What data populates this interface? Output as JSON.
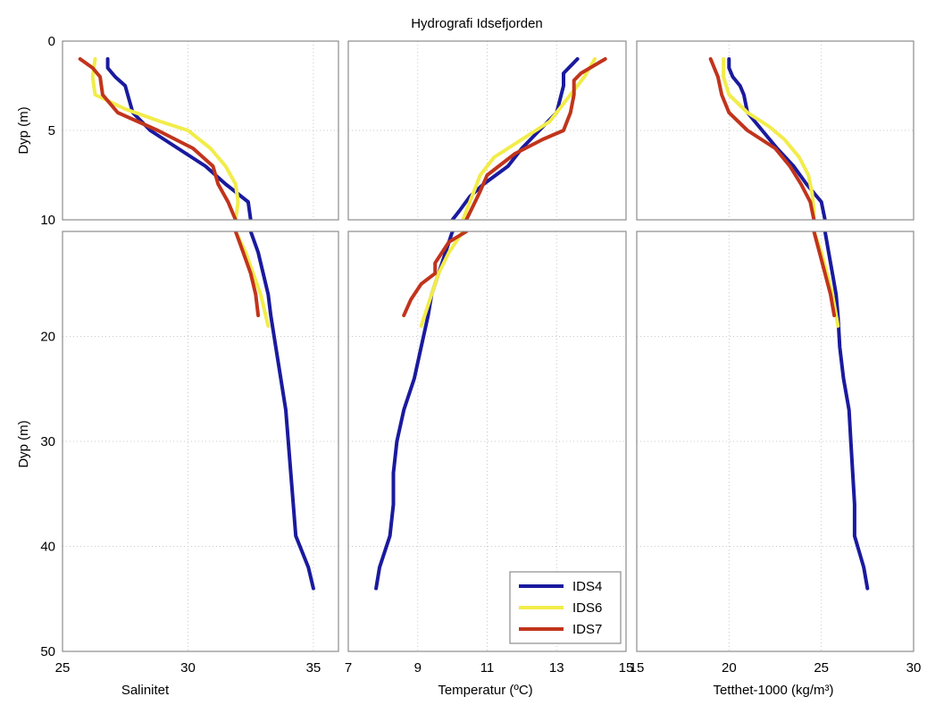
{
  "colors": {
    "IDS4": "#1a1a9e",
    "IDS6": "#f2ec4a",
    "IDS7": "#c1341c",
    "grid": "#c8c8c8",
    "axes": "#8c8c8c"
  },
  "chart_data": {
    "type": "line",
    "title": "Hydrografi Idsefjorden",
    "ylabel": "Dyp (m)",
    "y_reversed": true,
    "y_broken_axis": {
      "upper_ylim": [
        0,
        10
      ],
      "lower_ylim": [
        10,
        50
      ]
    },
    "y_ticks_upper": [
      0,
      5,
      10
    ],
    "y_ticks_lower": [
      20,
      30,
      40,
      50
    ],
    "grid": true,
    "legend": {
      "location": "bottom-right of middle panel",
      "entries": [
        "IDS4",
        "IDS6",
        "IDS7"
      ]
    },
    "panels": [
      {
        "xlabel": "Salinitet",
        "xlim": [
          25,
          36
        ],
        "xticks": [
          25,
          30,
          35
        ],
        "series": [
          {
            "name": "IDS4",
            "points": [
              [
                26.8,
                1
              ],
              [
                26.8,
                1.5
              ],
              [
                27.1,
                2
              ],
              [
                27.5,
                2.5
              ],
              [
                27.6,
                3
              ],
              [
                27.8,
                4
              ],
              [
                28.5,
                5
              ],
              [
                29.6,
                6
              ],
              [
                30.7,
                7
              ],
              [
                31.5,
                8
              ],
              [
                32.4,
                9
              ],
              [
                32.5,
                10
              ],
              [
                32.8,
                12
              ],
              [
                33.0,
                14
              ],
              [
                33.2,
                16
              ],
              [
                33.3,
                18
              ],
              [
                33.5,
                21
              ],
              [
                33.7,
                24
              ],
              [
                33.9,
                27
              ],
              [
                34.0,
                30
              ],
              [
                34.1,
                33
              ],
              [
                34.2,
                36
              ],
              [
                34.3,
                39
              ],
              [
                34.8,
                42
              ],
              [
                35.0,
                44
              ]
            ]
          },
          {
            "name": "IDS6",
            "points": [
              [
                26.3,
                1
              ],
              [
                26.2,
                2
              ],
              [
                26.3,
                3
              ],
              [
                27.5,
                3.8
              ],
              [
                28.9,
                4.5
              ],
              [
                30.0,
                5
              ],
              [
                30.9,
                6
              ],
              [
                31.5,
                7
              ],
              [
                31.9,
                8
              ],
              [
                32.0,
                9
              ],
              [
                31.9,
                10
              ],
              [
                32.3,
                12
              ],
              [
                32.6,
                14
              ],
              [
                32.9,
                16
              ],
              [
                33.1,
                18
              ],
              [
                33.2,
                19
              ]
            ]
          },
          {
            "name": "IDS7",
            "points": [
              [
                25.7,
                1
              ],
              [
                26.2,
                1.5
              ],
              [
                26.5,
                2
              ],
              [
                26.6,
                3
              ],
              [
                27.2,
                4
              ],
              [
                28.8,
                5
              ],
              [
                30.2,
                6
              ],
              [
                31.0,
                7
              ],
              [
                31.2,
                8
              ],
              [
                31.6,
                9
              ],
              [
                31.9,
                10
              ],
              [
                32.2,
                12
              ],
              [
                32.5,
                14
              ],
              [
                32.7,
                16
              ],
              [
                32.8,
                18
              ]
            ]
          }
        ]
      },
      {
        "xlabel": "Temperatur (ºC)",
        "xlim": [
          7,
          15
        ],
        "xticks": [
          7,
          9,
          11,
          13,
          15
        ],
        "series": [
          {
            "name": "IDS4",
            "points": [
              [
                13.6,
                1
              ],
              [
                13.2,
                1.8
              ],
              [
                13.2,
                2.5
              ],
              [
                13.0,
                4
              ],
              [
                12.5,
                5
              ],
              [
                12.0,
                6
              ],
              [
                11.6,
                7
              ],
              [
                10.9,
                8
              ],
              [
                10.5,
                8.7
              ],
              [
                10.2,
                9.5
              ],
              [
                10.0,
                10
              ],
              [
                9.8,
                12
              ],
              [
                9.6,
                14
              ],
              [
                9.4,
                16
              ],
              [
                9.3,
                18
              ],
              [
                9.1,
                21
              ],
              [
                8.9,
                24
              ],
              [
                8.6,
                27
              ],
              [
                8.4,
                30
              ],
              [
                8.3,
                33
              ],
              [
                8.3,
                36
              ],
              [
                8.2,
                39
              ],
              [
                7.9,
                42
              ],
              [
                7.8,
                44
              ]
            ]
          },
          {
            "name": "IDS6",
            "points": [
              [
                14.1,
                1
              ],
              [
                13.8,
                2
              ],
              [
                13.2,
                3.5
              ],
              [
                12.8,
                4.5
              ],
              [
                12.0,
                5.5
              ],
              [
                11.2,
                6.5
              ],
              [
                10.8,
                7.5
              ],
              [
                10.6,
                8.5
              ],
              [
                10.4,
                9.5
              ],
              [
                10.2,
                10.5
              ],
              [
                9.9,
                12
              ],
              [
                9.6,
                14
              ],
              [
                9.4,
                16
              ],
              [
                9.2,
                18
              ],
              [
                9.1,
                19
              ]
            ]
          },
          {
            "name": "IDS7",
            "points": [
              [
                14.4,
                1
              ],
              [
                13.7,
                1.8
              ],
              [
                13.5,
                2.2
              ],
              [
                13.5,
                3
              ],
              [
                13.4,
                4
              ],
              [
                13.2,
                5
              ],
              [
                12.6,
                5.5
              ],
              [
                11.8,
                6.3
              ],
              [
                11.0,
                7.5
              ],
              [
                10.8,
                8.4
              ],
              [
                10.6,
                9.2
              ],
              [
                10.4,
                10
              ],
              [
                9.9,
                11
              ],
              [
                9.7,
                12
              ],
              [
                9.5,
                13
              ],
              [
                9.5,
                14
              ],
              [
                9.1,
                15
              ],
              [
                8.8,
                16.5
              ],
              [
                8.6,
                18
              ]
            ]
          }
        ]
      },
      {
        "xlabel": "Tetthet-1000 (kg/m³)",
        "xlim": [
          15,
          30
        ],
        "xticks": [
          15,
          20,
          25,
          30
        ],
        "series": [
          {
            "name": "IDS4",
            "points": [
              [
                20.0,
                1
              ],
              [
                20.0,
                1.5
              ],
              [
                20.2,
                2
              ],
              [
                20.6,
                2.5
              ],
              [
                20.8,
                3
              ],
              [
                21.0,
                4
              ],
              [
                21.8,
                5
              ],
              [
                22.6,
                6
              ],
              [
                23.5,
                7
              ],
              [
                24.2,
                8
              ],
              [
                25.0,
                9
              ],
              [
                25.2,
                10
              ],
              [
                25.4,
                12
              ],
              [
                25.6,
                14
              ],
              [
                25.8,
                16
              ],
              [
                25.9,
                18
              ],
              [
                26.0,
                21
              ],
              [
                26.2,
                24
              ],
              [
                26.5,
                27
              ],
              [
                26.6,
                30
              ],
              [
                26.7,
                33
              ],
              [
                26.8,
                36
              ],
              [
                26.8,
                39
              ],
              [
                27.3,
                42
              ],
              [
                27.5,
                44
              ]
            ]
          },
          {
            "name": "IDS6",
            "points": [
              [
                19.7,
                1
              ],
              [
                19.7,
                2
              ],
              [
                20.0,
                3
              ],
              [
                21.0,
                4
              ],
              [
                22.2,
                4.8
              ],
              [
                23.0,
                5.5
              ],
              [
                23.8,
                6.5
              ],
              [
                24.3,
                7.5
              ],
              [
                24.5,
                8.5
              ],
              [
                24.6,
                9.5
              ],
              [
                24.6,
                10
              ],
              [
                25.0,
                12
              ],
              [
                25.3,
                14
              ],
              [
                25.6,
                16
              ],
              [
                25.8,
                18
              ],
              [
                25.9,
                19
              ]
            ]
          },
          {
            "name": "IDS7",
            "points": [
              [
                19.0,
                1
              ],
              [
                19.4,
                2
              ],
              [
                19.6,
                3
              ],
              [
                20.0,
                4
              ],
              [
                21.0,
                5
              ],
              [
                22.5,
                6
              ],
              [
                23.3,
                7
              ],
              [
                23.9,
                8
              ],
              [
                24.4,
                9
              ],
              [
                24.6,
                10
              ],
              [
                24.9,
                12
              ],
              [
                25.2,
                14
              ],
              [
                25.5,
                16
              ],
              [
                25.7,
                18
              ]
            ]
          }
        ]
      }
    ]
  }
}
